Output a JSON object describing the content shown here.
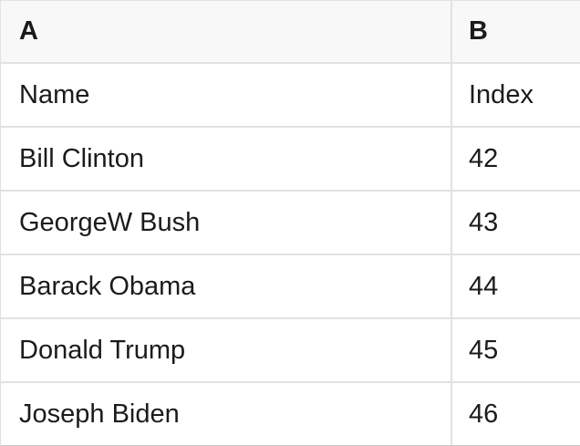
{
  "table": {
    "columns": [
      {
        "label": "A"
      },
      {
        "label": "B"
      }
    ],
    "rows": [
      {
        "a": "Name",
        "b": "Index"
      },
      {
        "a": "Bill Clinton",
        "b": "42"
      },
      {
        "a": "GeorgeW Bush",
        "b": "43"
      },
      {
        "a": "Barack Obama",
        "b": "44"
      },
      {
        "a": "Donald Trump",
        "b": "45"
      },
      {
        "a": "Joseph Biden",
        "b": "46"
      }
    ]
  },
  "colors": {
    "header_bg": "#f8f8f8",
    "grid_line": "#e2e2e2",
    "bottom_edge": "#c9c9c9",
    "text": "#1b1b1b",
    "row_bg": "#ffffff"
  }
}
